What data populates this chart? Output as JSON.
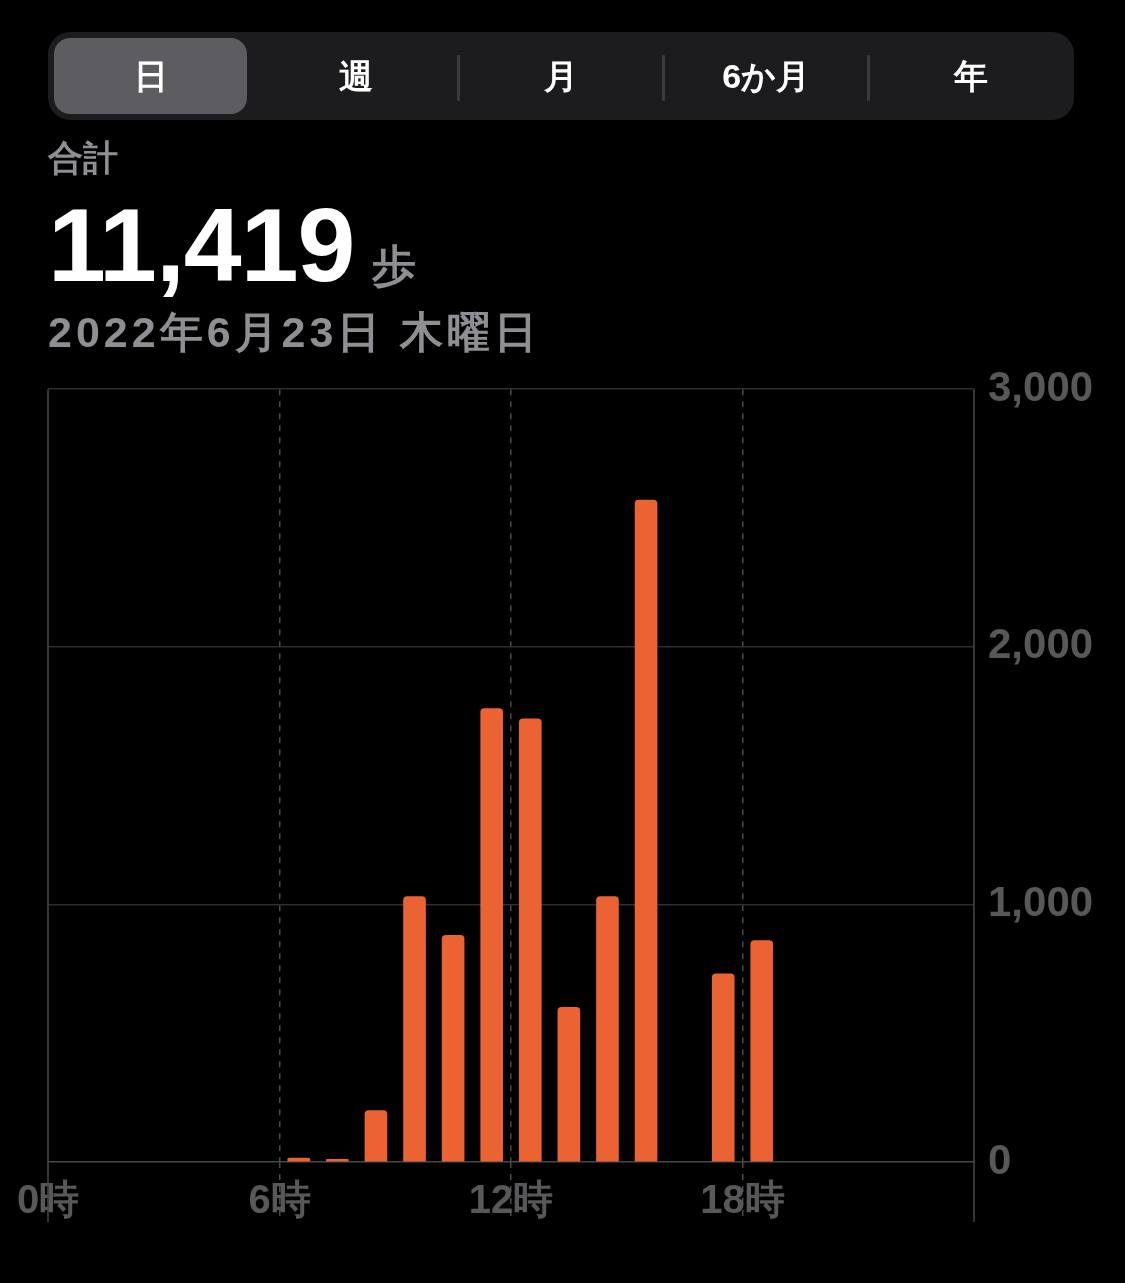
{
  "chart_data": {
    "type": "bar",
    "title": "11,419 歩",
    "subtitle": "2022年6月23日 木曜日",
    "annotations": [
      "日",
      "週",
      "月",
      "6か月",
      "年",
      "合計"
    ],
    "x": [
      6.5,
      7.5,
      8.5,
      9.5,
      10.5,
      11.5,
      12.5,
      13.5,
      14.5,
      15.5,
      17.5,
      18.5
    ],
    "values": [
      15,
      10,
      200,
      1030,
      880,
      1760,
      1720,
      600,
      1030,
      2570,
      730,
      860
    ],
    "color": "#eb6332",
    "xlim": [
      0,
      24
    ],
    "xticks": [
      {
        "value": 0,
        "label": "0時"
      },
      {
        "value": 6,
        "label": "6時"
      },
      {
        "value": 12,
        "label": "12時"
      },
      {
        "value": 18,
        "label": "18時"
      }
    ],
    "ylim": [
      0,
      3000
    ],
    "yticks": [
      0,
      {
        "value": 1000,
        "label": "1,000"
      },
      {
        "value": 2000,
        "label": "2,000"
      },
      {
        "value": 3000,
        "label": "3,000"
      }
    ],
    "grid": true
  }
}
